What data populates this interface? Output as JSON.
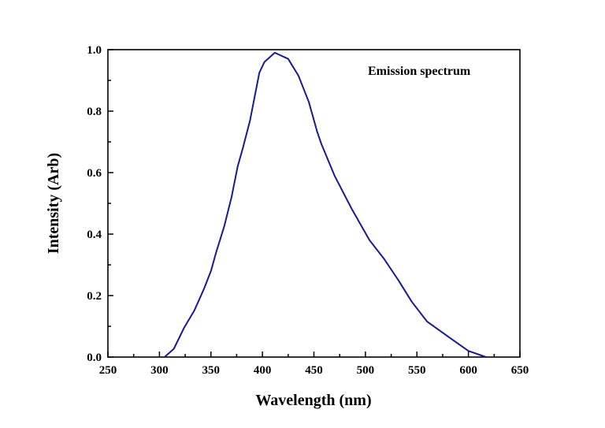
{
  "chart_data": {
    "type": "line",
    "title": "",
    "annotation": "Emission spectrum",
    "xlabel": "Wavelength (nm)",
    "ylabel": "Intensity (Arb)",
    "xlim": [
      250,
      650
    ],
    "ylim": [
      0,
      1.0
    ],
    "xticks": [
      "250",
      "300",
      "350",
      "400",
      "450",
      "500",
      "550",
      "600",
      "650"
    ],
    "yticks": [
      "0.0",
      "0.2",
      "0.4",
      "0.6",
      "0.8",
      "1.0"
    ],
    "grid": false,
    "line_color": "#1a1a8c",
    "series": [
      {
        "name": "Emission spectrum",
        "x": [
          305,
          314,
          324,
          334,
          343,
          350,
          355,
          363,
          370,
          376,
          381,
          388,
          397,
          402,
          412,
          425,
          435,
          445,
          453,
          457,
          470,
          487,
          504,
          518,
          532,
          545,
          560,
          583,
          600,
          617
        ],
        "y": [
          0,
          0.027,
          0.096,
          0.152,
          0.22,
          0.28,
          0.34,
          0.426,
          0.52,
          0.62,
          0.68,
          0.77,
          0.925,
          0.96,
          0.99,
          0.97,
          0.915,
          0.83,
          0.735,
          0.695,
          0.59,
          0.48,
          0.38,
          0.32,
          0.25,
          0.18,
          0.115,
          0.06,
          0.02,
          0
        ]
      }
    ]
  }
}
